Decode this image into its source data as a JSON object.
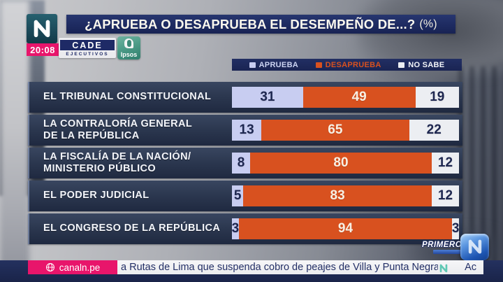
{
  "header": {
    "channel_logo": "N",
    "time": "20:08",
    "title": "¿APRUEBA O DESAPRUEBA EL DESEMPEÑO DE...?",
    "title_suffix": "(%)",
    "cade_line1": "CADE",
    "cade_line2": "EJECUTIVOS",
    "ipsos_label": "Ipsos"
  },
  "legend": [
    {
      "label": "APRUEBA",
      "color": "#c8cdf1",
      "text_color": "#ccd4f2"
    },
    {
      "label": "DESAPRUEBA",
      "color": "#d8511f",
      "text_color": "#d8511f"
    },
    {
      "label": "NO SABE",
      "color": "#eceef2",
      "text_color": "#f4f6fa"
    }
  ],
  "chart_data": {
    "type": "bar",
    "orientation": "horizontal-stacked",
    "title": "¿APRUEBA O DESAPRUEBA EL DESEMPEÑO DE...? (%)",
    "unit": "%",
    "legend_position": "top",
    "categories": [
      "EL TRIBUNAL CONSTITUCIONAL",
      "LA CONTRALORÍA GENERAL DE LA REPÚBLICA",
      "LA FISCALÍA DE LA NACIÓN/ MINISTERIO PÚBLICO",
      "EL PODER JUDICIAL",
      "EL CONGRESO DE LA REPÚBLICA"
    ],
    "series": [
      {
        "name": "APRUEBA",
        "values": [
          31,
          13,
          8,
          5,
          3
        ],
        "color": "#c8cdf1"
      },
      {
        "name": "DESAPRUEBA",
        "values": [
          49,
          65,
          80,
          83,
          94
        ],
        "color": "#d8511f"
      },
      {
        "name": "NO SABE",
        "values": [
          19,
          22,
          12,
          12,
          3
        ],
        "color": "#eceef2"
      }
    ]
  },
  "rows": [
    {
      "label1": "EL TRIBUNAL CONSTITUCIONAL",
      "label2": "",
      "aprueba": 31,
      "desaprueba": 49,
      "no_sabe": 19
    },
    {
      "label1": "LA CONTRALORÍA GENERAL",
      "label2": "DE LA REPÚBLICA",
      "aprueba": 13,
      "desaprueba": 65,
      "no_sabe": 22
    },
    {
      "label1": "LA FISCALÍA DE LA NACIÓN/",
      "label2": "MINISTERIO PÚBLICO",
      "aprueba": 8,
      "desaprueba": 80,
      "no_sabe": 12
    },
    {
      "label1": "EL PODER JUDICIAL",
      "label2": "",
      "aprueba": 5,
      "desaprueba": 83,
      "no_sabe": 12
    },
    {
      "label1": "EL CONGRESO DE LA REPÚBLICA",
      "label2": "",
      "aprueba": 3,
      "desaprueba": 94,
      "no_sabe": 3
    }
  ],
  "footer": {
    "primero_label": "PRIMERO",
    "site_label": "canaln.pe",
    "ticker_text": "a Rutas de Lima que suspenda cobro de peajes de Villa y Punta Negra",
    "ticker_next": "Ac"
  },
  "colors": {
    "aprueba": "#c8cdf1",
    "desaprueba": "#d8511f",
    "no_sabe": "#eceef2",
    "navy_text": "#1e2750",
    "light_text": "#f7f0e4",
    "title_bar": "#1d2a60",
    "legend_bar": "#1a2453",
    "pink": "#e8156b",
    "panel": "#2c3850",
    "ticker_accent_teal": "#5fc8b4"
  }
}
